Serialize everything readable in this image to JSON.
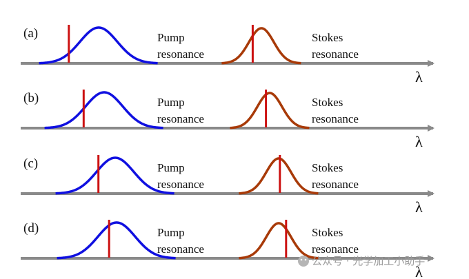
{
  "panels": [
    {
      "label": "(a)",
      "pump_text": [
        "Pump",
        "resonance"
      ],
      "stokes_text": [
        "Stokes",
        "resonance"
      ],
      "axis_symbol": "λ",
      "pump_marker_offset": -1.6,
      "stokes_marker_offset": -0.7
    },
    {
      "label": "(b)",
      "pump_text": [
        "Pump",
        "resonance"
      ],
      "stokes_text": [
        "Stokes",
        "resonance"
      ],
      "axis_symbol": "λ",
      "pump_marker_offset": -1.1,
      "stokes_marker_offset": -0.3
    },
    {
      "label": "(c)",
      "pump_text": [
        "Pump",
        "resonance"
      ],
      "stokes_text": [
        "Stokes",
        "resonance"
      ],
      "axis_symbol": "λ",
      "pump_marker_offset": -0.9,
      "stokes_marker_offset": 0.1
    },
    {
      "label": "(d)",
      "pump_text": [
        "Pump",
        "resonance"
      ],
      "stokes_text": [
        "Stokes",
        "resonance"
      ],
      "axis_symbol": "λ",
      "pump_marker_offset": -0.4,
      "stokes_marker_offset": 0.6
    }
  ],
  "colors": {
    "axis": "#8a8a8a",
    "pump_curve": "#1010e0",
    "stokes_curve": "#a83a08",
    "marker": "#cc1111"
  },
  "watermark": "公众号 · 光学加工小助手"
}
